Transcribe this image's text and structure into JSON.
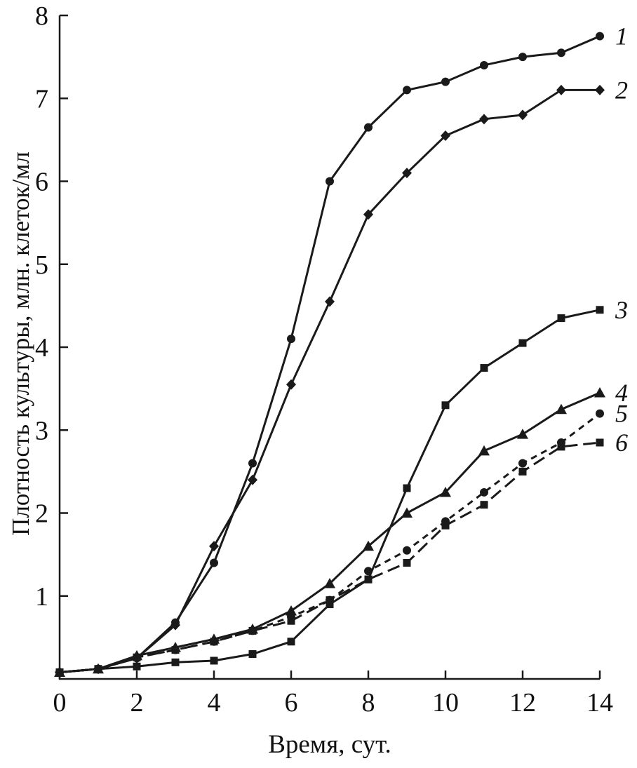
{
  "chart_data": {
    "type": "line",
    "title": "",
    "xlabel": "Время, сут.",
    "ylabel": "Плотность культуры, млн. клеток/мл",
    "xlim": [
      0,
      14
    ],
    "ylim": [
      0,
      8
    ],
    "x_ticks": [
      0,
      2,
      4,
      6,
      8,
      10,
      12,
      14
    ],
    "y_ticks": [
      1,
      2,
      3,
      4,
      5,
      6,
      7,
      8
    ],
    "grid": false,
    "legend_position": "curve-end-labels-right",
    "line_color": "#1a1a1a",
    "x": [
      0,
      1,
      2,
      3,
      4,
      5,
      6,
      7,
      8,
      9,
      10,
      11,
      12,
      13,
      14
    ],
    "series": [
      {
        "name": "1",
        "marker": "circle",
        "line_style": "solid",
        "color": "#1a1a1a",
        "values": [
          0.08,
          0.12,
          0.25,
          0.68,
          1.4,
          2.6,
          4.1,
          6.0,
          6.65,
          7.1,
          7.2,
          7.4,
          7.5,
          7.55,
          7.75
        ]
      },
      {
        "name": "2",
        "marker": "diamond",
        "line_style": "solid",
        "color": "#1a1a1a",
        "values": [
          0.08,
          0.12,
          0.25,
          0.65,
          1.6,
          2.4,
          3.55,
          4.55,
          5.6,
          6.1,
          6.55,
          6.75,
          6.8,
          7.1,
          7.1
        ]
      },
      {
        "name": "3",
        "marker": "square",
        "line_style": "solid",
        "color": "#1a1a1a",
        "values": [
          0.08,
          0.12,
          0.15,
          0.2,
          0.22,
          0.3,
          0.45,
          0.9,
          1.2,
          2.3,
          3.3,
          3.75,
          4.05,
          4.35,
          4.45
        ]
      },
      {
        "name": "4",
        "marker": "triangle",
        "line_style": "solid",
        "color": "#1a1a1a",
        "values": [
          0.08,
          0.12,
          0.28,
          0.38,
          0.48,
          0.6,
          0.82,
          1.15,
          1.6,
          2.0,
          2.25,
          2.75,
          2.95,
          3.25,
          3.45
        ]
      },
      {
        "name": "5",
        "marker": "circle",
        "line_style": "dashed",
        "color": "#1a1a1a",
        "values": [
          0.08,
          0.12,
          0.26,
          0.35,
          0.45,
          0.58,
          0.75,
          0.95,
          1.3,
          1.55,
          1.9,
          2.25,
          2.6,
          2.85,
          3.2
        ]
      },
      {
        "name": "6",
        "marker": "square",
        "line_style": "long-dash",
        "color": "#1a1a1a",
        "values": [
          0.08,
          0.12,
          0.26,
          0.35,
          0.45,
          0.58,
          0.7,
          0.95,
          1.2,
          1.4,
          1.85,
          2.1,
          2.5,
          2.8,
          2.85
        ]
      }
    ]
  }
}
